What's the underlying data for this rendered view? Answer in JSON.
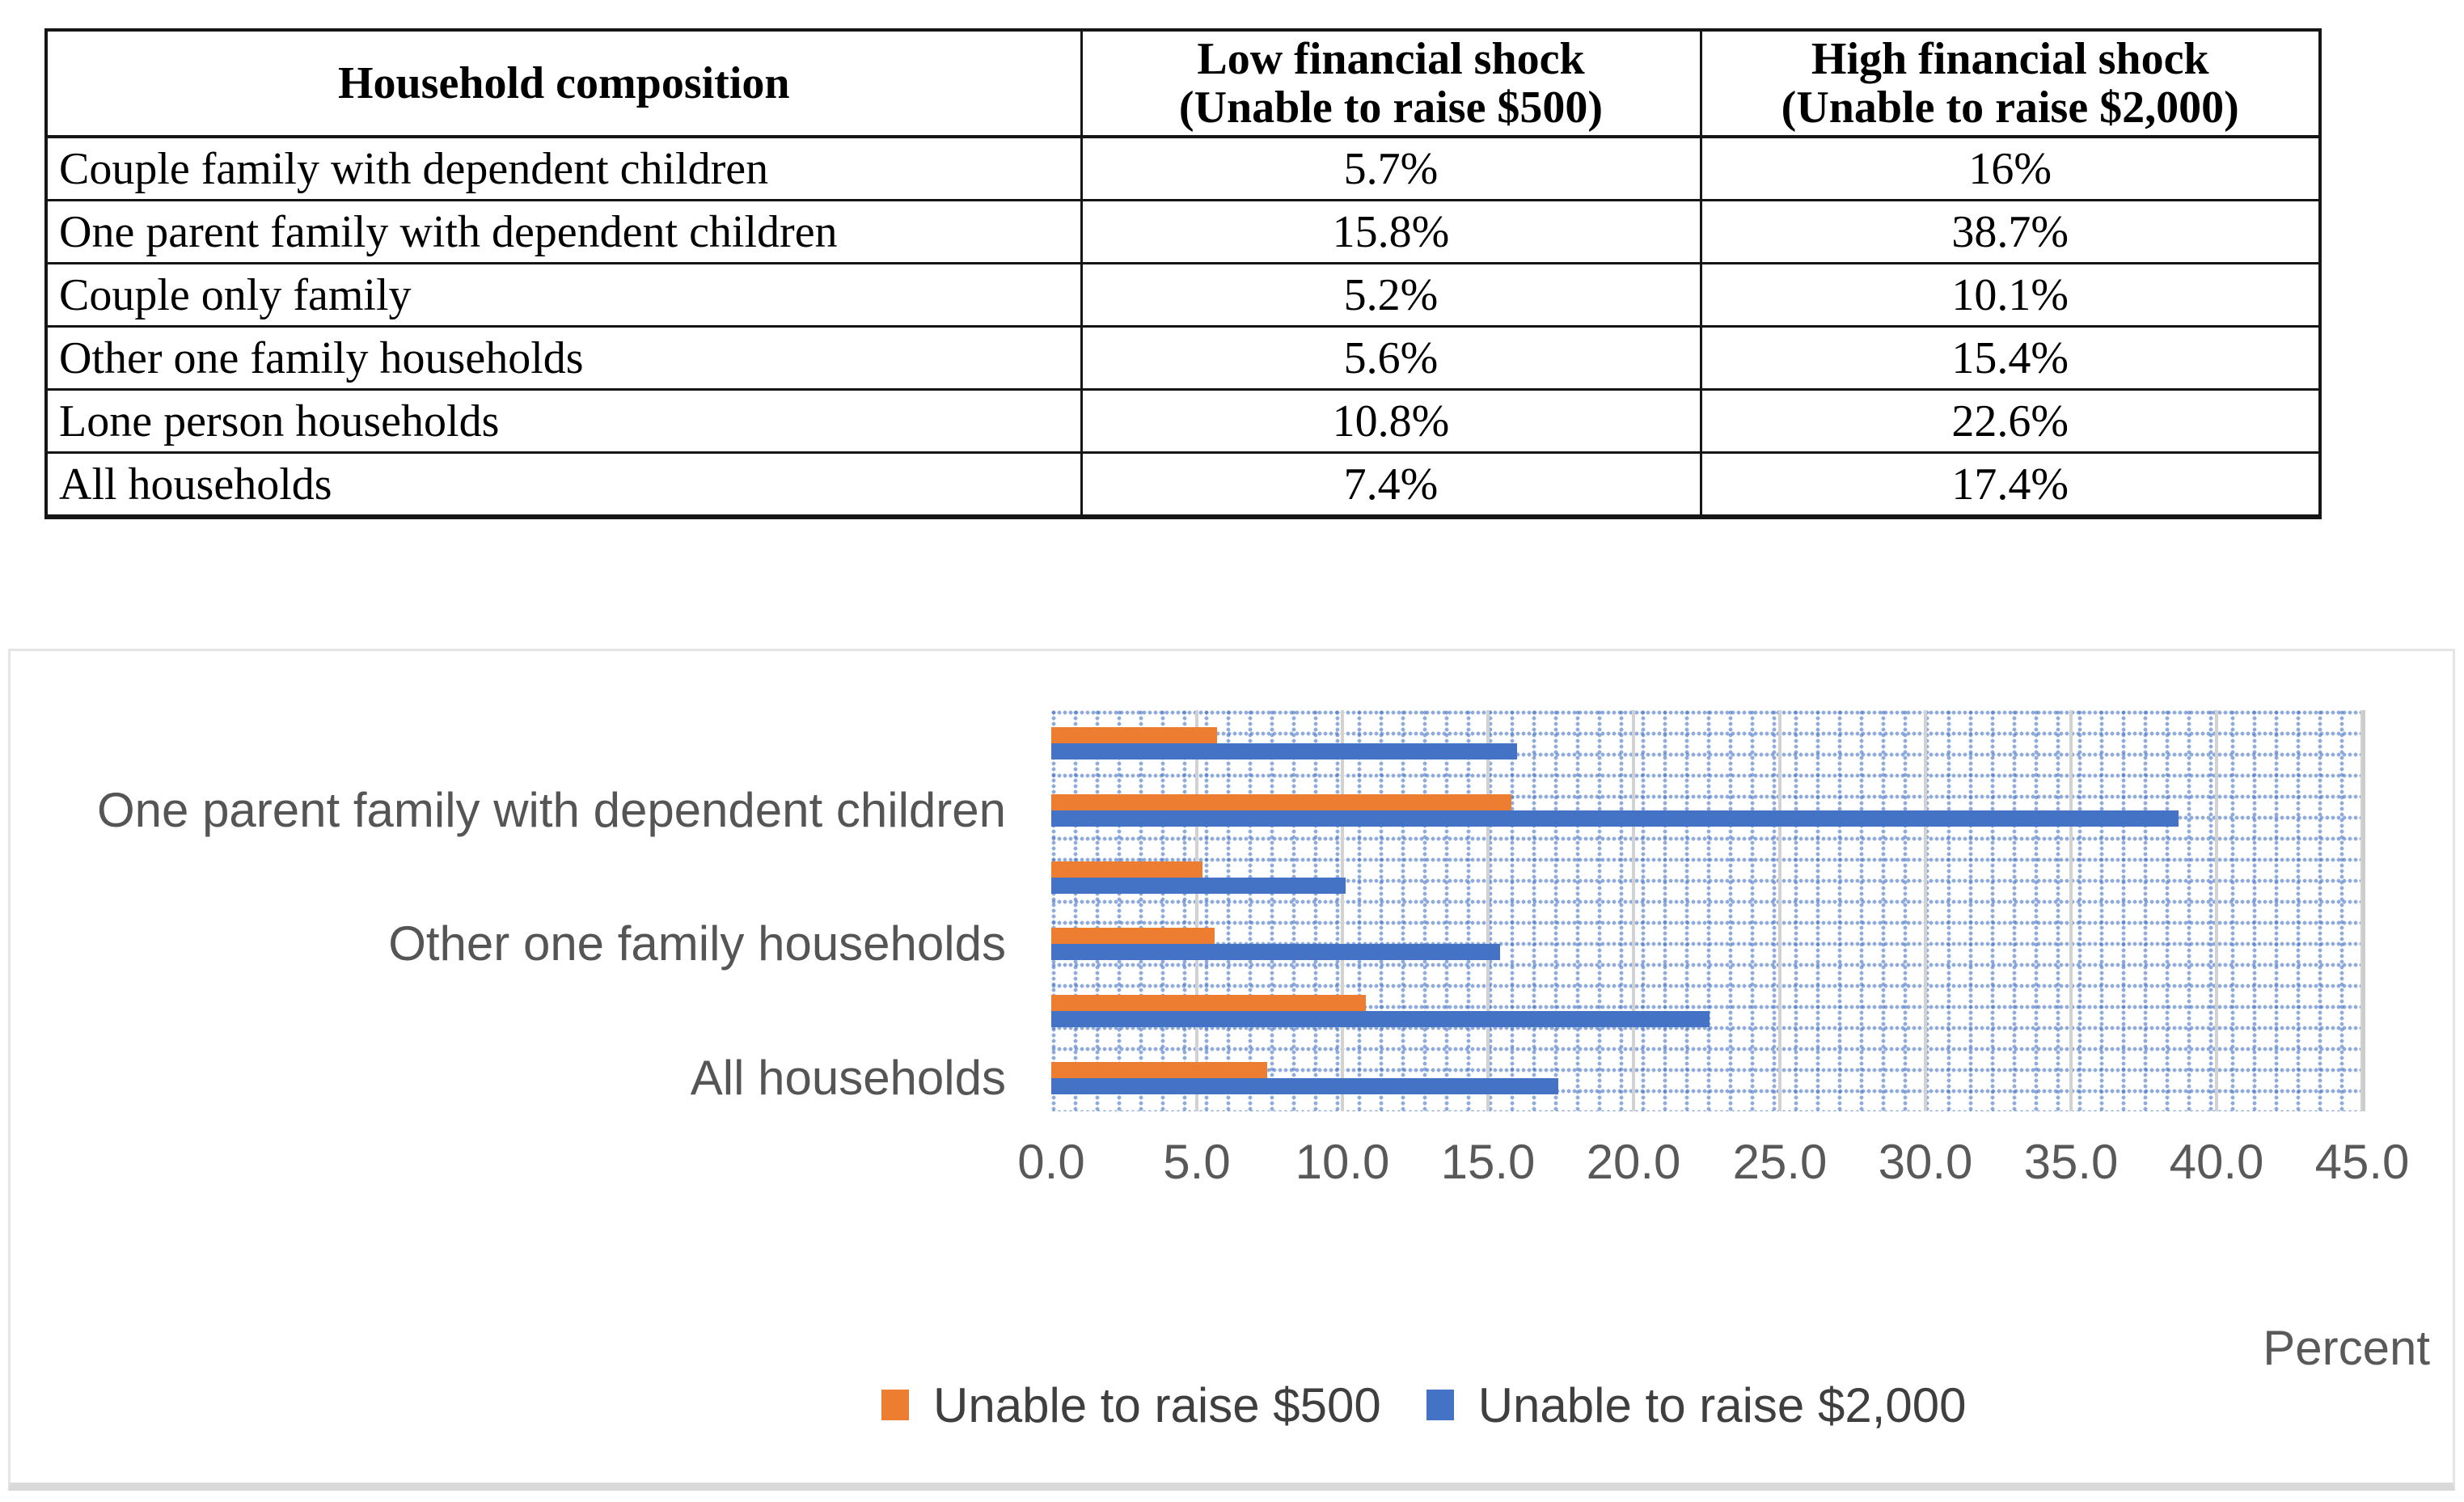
{
  "table": {
    "header_cells": [
      {
        "line1": "Household composition",
        "line2": ""
      },
      {
        "line1": "Low financial shock",
        "line2": "(Unable to raise $500)"
      },
      {
        "line1": "High financial shock",
        "line2": "(Unable to raise $2,000)"
      }
    ]
  },
  "chart_data": [
    {
      "type": "table",
      "columns": [
        "Household composition",
        "Low financial shock (Unable to raise $500)",
        "High financial shock (Unable to raise $2,000)"
      ],
      "rows": [
        [
          "Couple family with dependent children",
          "5.7%",
          "16%"
        ],
        [
          "One parent family with dependent children",
          "15.8%",
          "38.7%"
        ],
        [
          "Couple only family",
          "5.2%",
          "10.1%"
        ],
        [
          "Other one family households",
          "5.6%",
          "15.4%"
        ],
        [
          "Lone person households",
          "10.8%",
          "22.6%"
        ],
        [
          "All households",
          "7.4%",
          "17.4%"
        ]
      ]
    },
    {
      "type": "bar",
      "orientation": "horizontal",
      "categories": [
        "Couple family with dependent children",
        "One parent family with dependent children",
        "Couple only family",
        "Other one family households",
        "Lone person households",
        "All households"
      ],
      "series": [
        {
          "name": "Unable to raise $500",
          "color": "#ED7D31",
          "values": [
            5.7,
            15.8,
            5.2,
            5.6,
            10.8,
            7.4
          ]
        },
        {
          "name": "Unable to raise $2,000",
          "color": "#4472C4",
          "values": [
            16.0,
            38.7,
            10.1,
            15.4,
            22.6,
            17.4
          ]
        }
      ],
      "xlim": [
        0,
        45
      ],
      "xtick_step": 5,
      "xtick_labels": [
        "0.0",
        "5.0",
        "10.0",
        "15.0",
        "20.0",
        "25.0",
        "30.0",
        "35.0",
        "40.0",
        "45.0"
      ],
      "xlabel": "Percent",
      "visible_category_label_indices": [
        1,
        3,
        5
      ],
      "legend_position": "bottom",
      "grid": true,
      "plot_pattern": "dotted-grid",
      "pattern_color": "#4472C4",
      "gridline_color": "#D2D2D2",
      "axis_text_color": "#595959"
    }
  ]
}
